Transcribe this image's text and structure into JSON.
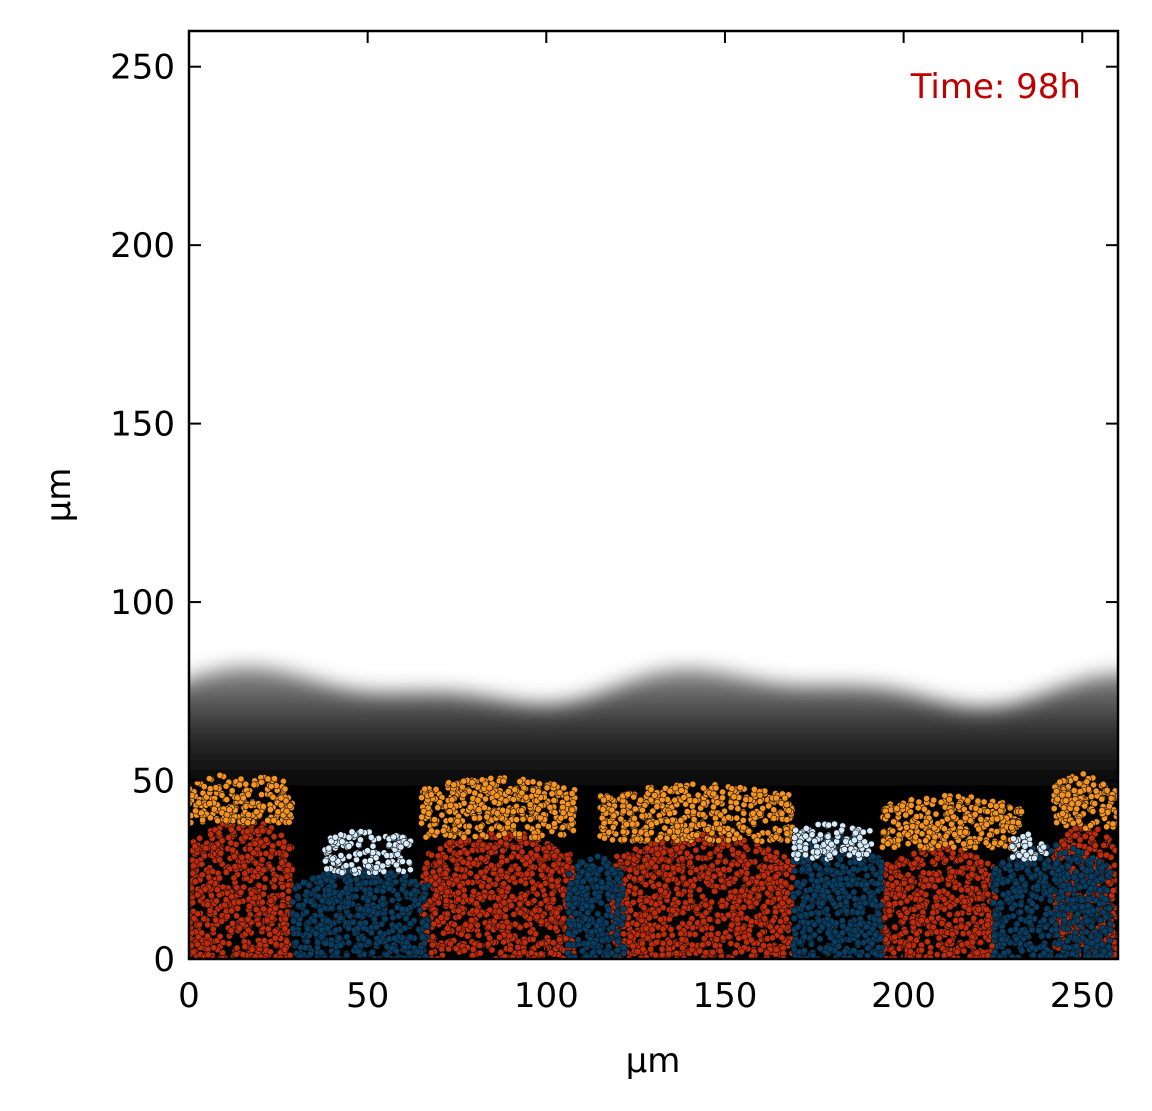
{
  "chart_data": {
    "type": "scatter",
    "annotation": "Time: 98h",
    "xlabel": "μm",
    "ylabel": "μm",
    "xlim": [
      0,
      260
    ],
    "ylim": [
      0,
      260
    ],
    "xticks": [
      0,
      50,
      100,
      150,
      200,
      250
    ],
    "yticks": [
      0,
      50,
      100,
      150,
      200,
      250
    ],
    "grid": false,
    "background": "grayscale concentration field, dark near colony (y<55), fading to white around y~100",
    "series": [
      {
        "kind": "deep cells",
        "color": "#c42b08",
        "regions": [
          {
            "x": [
              0,
              29
            ],
            "top": 40
          },
          {
            "x": [
              65,
              108
            ],
            "top": 36
          },
          {
            "x": [
              118,
              169
            ],
            "top": 35
          },
          {
            "x": [
              194,
              226
            ],
            "top": 32
          },
          {
            "x": [
              242,
              260
            ],
            "top": 38
          }
        ]
      },
      {
        "kind": "surface cells",
        "color": "#f7941d",
        "regions": [
          {
            "x": [
              0,
              29
            ],
            "bottom": 38,
            "top": 52
          },
          {
            "x": [
              65,
              108
            ],
            "bottom": 34,
            "top": 51
          },
          {
            "x": [
              115,
              169
            ],
            "bottom": 33,
            "top": 49
          },
          {
            "x": [
              194,
              233
            ],
            "bottom": 31,
            "top": 46
          },
          {
            "x": [
              242,
              260
            ],
            "bottom": 36,
            "top": 52
          }
        ]
      },
      {
        "kind": "deep cells",
        "color": "#063f66",
        "regions": [
          {
            "x": [
              29,
              67
            ],
            "top": 26
          },
          {
            "x": [
              106,
              122
            ],
            "top": 30
          },
          {
            "x": [
              169,
              194
            ],
            "top": 35
          },
          {
            "x": [
              225,
              258
            ],
            "top": 32
          }
        ]
      },
      {
        "kind": "surface cells",
        "color": "#d6ecfb",
        "regions": [
          {
            "x": [
              38,
              62
            ],
            "bottom": 24,
            "top": 36
          },
          {
            "x": [
              169,
              191
            ],
            "bottom": 28,
            "top": 38
          },
          {
            "x": [
              230,
              240
            ],
            "bottom": 28,
            "top": 35
          }
        ]
      }
    ]
  }
}
